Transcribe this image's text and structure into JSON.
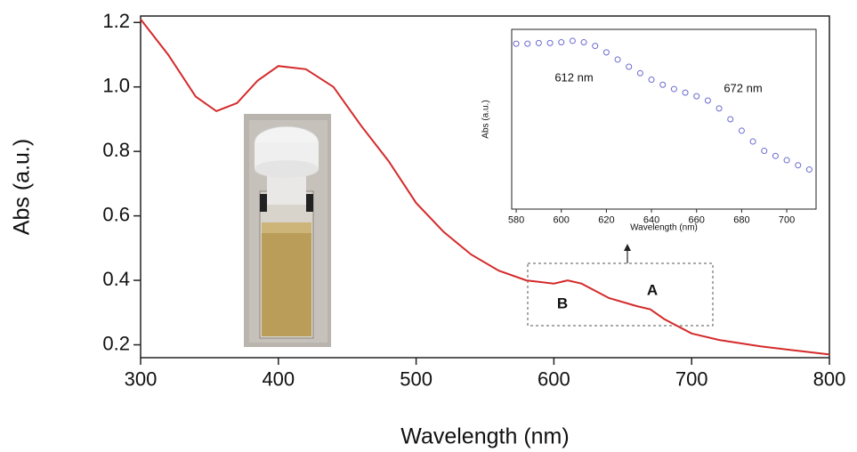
{
  "chart_data": [
    {
      "type": "line",
      "x": [
        300,
        320,
        340,
        355,
        370,
        385,
        400,
        420,
        440,
        460,
        480,
        500,
        520,
        540,
        560,
        580,
        600,
        610,
        620,
        640,
        660,
        670,
        680,
        700,
        720,
        750,
        780,
        800
      ],
      "values": [
        1.21,
        1.1,
        0.97,
        0.925,
        0.95,
        1.02,
        1.065,
        1.055,
        1.0,
        0.88,
        0.77,
        0.64,
        0.55,
        0.48,
        0.43,
        0.4,
        0.39,
        0.4,
        0.39,
        0.345,
        0.32,
        0.31,
        0.28,
        0.235,
        0.215,
        0.195,
        0.18,
        0.17
      ],
      "color": "#d42a2a",
      "xlabel": "Wavelength (nm)",
      "ylabel": "Abs (a.u.)",
      "xlim": [
        300,
        800
      ],
      "ylim": [
        0.16,
        1.22
      ],
      "xticks": [
        300,
        400,
        500,
        600,
        700,
        800
      ],
      "yticks": [
        0.2,
        0.4,
        0.6,
        0.8,
        {
          "value": 1.0,
          "label": "1.0"
        },
        1.2
      ],
      "annotations": [
        "B",
        "A"
      ]
    },
    {
      "type": "scatter",
      "x": [
        580,
        585,
        590,
        595,
        600,
        605,
        610,
        615,
        620,
        625,
        630,
        635,
        640,
        645,
        650,
        655,
        660,
        665,
        670,
        675,
        680,
        685,
        690,
        695,
        700,
        705,
        710
      ],
      "values": [
        0.4,
        0.4,
        0.401,
        0.401,
        0.402,
        0.404,
        0.402,
        0.397,
        0.388,
        0.378,
        0.368,
        0.359,
        0.35,
        0.343,
        0.337,
        0.332,
        0.327,
        0.321,
        0.31,
        0.295,
        0.279,
        0.264,
        0.251,
        0.244,
        0.238,
        0.231,
        0.225
      ],
      "color": "#6a6ad0",
      "xlabel": "Wavelength (nm)",
      "ylabel": "Abs (a.u.)",
      "xlim": [
        578,
        713
      ],
      "ylim": [
        0.17,
        0.42
      ],
      "xticks": [
        580,
        600,
        620,
        640,
        660,
        680,
        700
      ],
      "annotations": [
        "612 nm",
        "672 nm"
      ]
    }
  ]
}
